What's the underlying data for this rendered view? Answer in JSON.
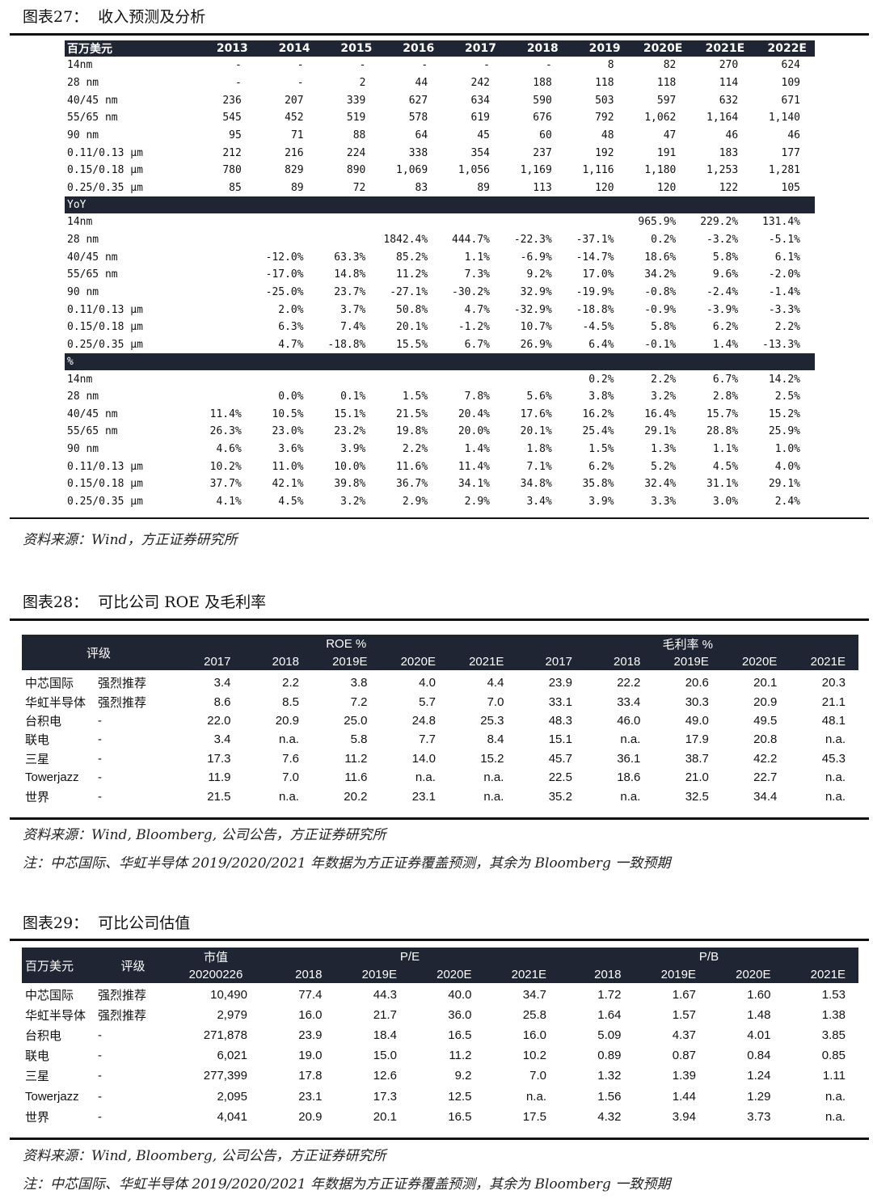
{
  "fig27": {
    "title": "图表27：  收入预测及分析",
    "unit_header": "百万美元",
    "years": [
      "2013",
      "2014",
      "2015",
      "2016",
      "2017",
      "2018",
      "2019",
      "2020E",
      "2021E",
      "2022E"
    ],
    "revenue_rows": [
      {
        "label": "14nm",
        "values": [
          "-",
          "-",
          "-",
          "-",
          "-",
          "-",
          "8",
          "82",
          "270",
          "624"
        ]
      },
      {
        "label": "28 nm",
        "values": [
          "-",
          "-",
          "2",
          "44",
          "242",
          "188",
          "118",
          "118",
          "114",
          "109"
        ]
      },
      {
        "label": "40/45 nm",
        "values": [
          "236",
          "207",
          "339",
          "627",
          "634",
          "590",
          "503",
          "597",
          "632",
          "671"
        ]
      },
      {
        "label": "55/65 nm",
        "values": [
          "545",
          "452",
          "519",
          "578",
          "619",
          "676",
          "792",
          "1,062",
          "1,164",
          "1,140"
        ]
      },
      {
        "label": "90 nm",
        "values": [
          "95",
          "71",
          "88",
          "64",
          "45",
          "60",
          "48",
          "47",
          "46",
          "46"
        ]
      },
      {
        "label": "0.11/0.13 μm",
        "values": [
          "212",
          "216",
          "224",
          "338",
          "354",
          "237",
          "192",
          "191",
          "183",
          "177"
        ]
      },
      {
        "label": "0.15/0.18 μm",
        "values": [
          "780",
          "829",
          "890",
          "1,069",
          "1,056",
          "1,169",
          "1,116",
          "1,180",
          "1,253",
          "1,281"
        ]
      },
      {
        "label": "0.25/0.35 μm",
        "values": [
          "85",
          "89",
          "72",
          "83",
          "89",
          "113",
          "120",
          "120",
          "122",
          "105"
        ]
      }
    ],
    "yoy_header": "YoY",
    "yoy_rows": [
      {
        "label": "14nm",
        "values": [
          "",
          "",
          "",
          "",
          "",
          "",
          "",
          "965.9%",
          "229.2%",
          "131.4%"
        ]
      },
      {
        "label": "28 nm",
        "values": [
          "",
          "",
          "",
          "1842.4%",
          "444.7%",
          "-22.3%",
          "-37.1%",
          "0.2%",
          "-3.2%",
          "-5.1%"
        ]
      },
      {
        "label": "40/45 nm",
        "values": [
          "",
          "-12.0%",
          "63.3%",
          "85.2%",
          "1.1%",
          "-6.9%",
          "-14.7%",
          "18.6%",
          "5.8%",
          "6.1%"
        ]
      },
      {
        "label": "55/65 nm",
        "values": [
          "",
          "-17.0%",
          "14.8%",
          "11.2%",
          "7.3%",
          "9.2%",
          "17.0%",
          "34.2%",
          "9.6%",
          "-2.0%"
        ]
      },
      {
        "label": "90 nm",
        "values": [
          "",
          "-25.0%",
          "23.7%",
          "-27.1%",
          "-30.2%",
          "32.9%",
          "-19.9%",
          "-0.8%",
          "-2.4%",
          "-1.4%"
        ]
      },
      {
        "label": "0.11/0.13 μm",
        "values": [
          "",
          "2.0%",
          "3.7%",
          "50.8%",
          "4.7%",
          "-32.9%",
          "-18.8%",
          "-0.9%",
          "-3.9%",
          "-3.3%"
        ]
      },
      {
        "label": "0.15/0.18 μm",
        "values": [
          "",
          "6.3%",
          "7.4%",
          "20.1%",
          "-1.2%",
          "10.7%",
          "-4.5%",
          "5.8%",
          "6.2%",
          "2.2%"
        ]
      },
      {
        "label": "0.25/0.35 μm",
        "values": [
          "",
          "4.7%",
          "-18.8%",
          "15.5%",
          "6.7%",
          "26.9%",
          "6.4%",
          "-0.1%",
          "1.4%",
          "-13.3%"
        ]
      }
    ],
    "share_header": "%",
    "share_rows": [
      {
        "label": "14nm",
        "values": [
          "",
          "",
          "",
          "",
          "",
          "",
          "0.2%",
          "2.2%",
          "6.7%",
          "14.2%"
        ]
      },
      {
        "label": "28 nm",
        "values": [
          "",
          "0.0%",
          "0.1%",
          "1.5%",
          "7.8%",
          "5.6%",
          "3.8%",
          "3.2%",
          "2.8%",
          "2.5%"
        ]
      },
      {
        "label": "40/45 nm",
        "values": [
          "11.4%",
          "10.5%",
          "15.1%",
          "21.5%",
          "20.4%",
          "17.6%",
          "16.2%",
          "16.4%",
          "15.7%",
          "15.2%"
        ]
      },
      {
        "label": "55/65 nm",
        "values": [
          "26.3%",
          "23.0%",
          "23.2%",
          "19.8%",
          "20.0%",
          "20.1%",
          "25.4%",
          "29.1%",
          "28.8%",
          "25.9%"
        ]
      },
      {
        "label": "90 nm",
        "values": [
          "4.6%",
          "3.6%",
          "3.9%",
          "2.2%",
          "1.4%",
          "1.8%",
          "1.5%",
          "1.3%",
          "1.1%",
          "1.0%"
        ]
      },
      {
        "label": "0.11/0.13 μm",
        "values": [
          "10.2%",
          "11.0%",
          "10.0%",
          "11.6%",
          "11.4%",
          "7.1%",
          "6.2%",
          "5.2%",
          "4.5%",
          "4.0%"
        ]
      },
      {
        "label": "0.15/0.18 μm",
        "values": [
          "37.7%",
          "42.1%",
          "39.8%",
          "36.7%",
          "34.1%",
          "34.8%",
          "35.8%",
          "32.4%",
          "31.1%",
          "29.1%"
        ]
      },
      {
        "label": "0.25/0.35 μm",
        "values": [
          "4.1%",
          "4.5%",
          "3.2%",
          "2.9%",
          "2.9%",
          "3.4%",
          "3.9%",
          "3.3%",
          "3.0%",
          "2.4%"
        ]
      }
    ],
    "source": "资料来源：Wind，方正证券研究所"
  },
  "fig28": {
    "title": "图表28：  可比公司 ROE 及毛利率",
    "rating_header": "评级",
    "roe_header": "ROE %",
    "margin_header": "毛利率 %",
    "years": [
      "2017",
      "2018",
      "2019E",
      "2020E",
      "2021E",
      "2017",
      "2018",
      "2019E",
      "2020E",
      "2021E"
    ],
    "rows": [
      {
        "name": "中芯国际",
        "rating": "强烈推荐",
        "values": [
          "3.4",
          "2.2",
          "3.8",
          "4.0",
          "4.4",
          "23.9",
          "22.2",
          "20.6",
          "20.1",
          "20.3"
        ]
      },
      {
        "name": "华虹半导体",
        "rating": "强烈推荐",
        "values": [
          "8.6",
          "8.5",
          "7.2",
          "5.7",
          "7.0",
          "33.1",
          "33.4",
          "30.3",
          "20.9",
          "21.1"
        ]
      },
      {
        "name": "台积电",
        "rating": "-",
        "values": [
          "22.0",
          "20.9",
          "25.0",
          "24.8",
          "25.3",
          "48.3",
          "46.0",
          "49.0",
          "49.5",
          "48.1"
        ]
      },
      {
        "name": "联电",
        "rating": "-",
        "values": [
          "3.4",
          "n.a.",
          "5.8",
          "7.7",
          "8.4",
          "15.1",
          "n.a.",
          "17.9",
          "20.8",
          "n.a."
        ]
      },
      {
        "name": "三星",
        "rating": "-",
        "values": [
          "17.3",
          "7.6",
          "11.2",
          "14.0",
          "15.2",
          "45.7",
          "36.1",
          "38.7",
          "42.2",
          "45.3"
        ]
      },
      {
        "name": "Towerjazz",
        "rating": "-",
        "values": [
          "11.9",
          "7.0",
          "11.6",
          "n.a.",
          "n.a.",
          "22.5",
          "18.6",
          "21.0",
          "22.7",
          "n.a."
        ]
      },
      {
        "name": "世界",
        "rating": "-",
        "values": [
          "21.5",
          "n.a.",
          "20.2",
          "23.1",
          "n.a.",
          "35.2",
          "n.a.",
          "32.5",
          "34.4",
          "n.a."
        ]
      }
    ],
    "source": "资料来源：Wind, Bloomberg, 公司公告，方正证券研究所",
    "note": "注：中芯国际、华虹半导体 2019/2020/2021 年数据为方正证券覆盖预测，其余为 Bloomberg 一致预期"
  },
  "fig29": {
    "title": "图表29：  可比公司估值",
    "unit_header": "百万美元",
    "rating_header": "评级",
    "mktcap_header": "市值",
    "mktcap_date": "20200226",
    "pe_header": "P/E",
    "pb_header": "P/B",
    "years": [
      "2018",
      "2019E",
      "2020E",
      "2021E",
      "2018",
      "2019E",
      "2020E",
      "2021E"
    ],
    "rows": [
      {
        "name": "中芯国际",
        "rating": "强烈推荐",
        "mktcap": "10,490",
        "values": [
          "77.4",
          "44.3",
          "40.0",
          "34.7",
          "1.72",
          "1.67",
          "1.60",
          "1.53"
        ]
      },
      {
        "name": "华虹半导体",
        "rating": "强烈推荐",
        "mktcap": "2,979",
        "values": [
          "16.0",
          "21.7",
          "36.0",
          "25.8",
          "1.64",
          "1.57",
          "1.48",
          "1.38"
        ]
      },
      {
        "name": "台积电",
        "rating": "-",
        "mktcap": "271,878",
        "values": [
          "23.9",
          "18.4",
          "16.5",
          "16.0",
          "5.09",
          "4.37",
          "4.01",
          "3.85"
        ]
      },
      {
        "name": "联电",
        "rating": "-",
        "mktcap": "6,021",
        "values": [
          "19.0",
          "15.0",
          "11.2",
          "10.2",
          "0.89",
          "0.87",
          "0.84",
          "0.85"
        ]
      },
      {
        "name": "三星",
        "rating": "-",
        "mktcap": "277,399",
        "values": [
          "17.8",
          "12.6",
          "9.2",
          "7.0",
          "1.32",
          "1.39",
          "1.24",
          "1.11"
        ]
      },
      {
        "name": "Towerjazz",
        "rating": "-",
        "mktcap": "2,095",
        "values": [
          "23.1",
          "17.3",
          "12.5",
          "n.a.",
          "1.56",
          "1.44",
          "1.29",
          "n.a."
        ]
      },
      {
        "name": "世界",
        "rating": "-",
        "mktcap": "4,041",
        "values": [
          "20.9",
          "20.1",
          "16.5",
          "17.5",
          "4.32",
          "3.94",
          "3.73",
          "n.a."
        ]
      }
    ],
    "source": "资料来源：Wind, Bloomberg, 公司公告，方正证券研究所",
    "note": "注：中芯国际、华虹半导体 2019/2020/2021 年数据为方正证券覆盖预测，其余为 Bloomberg 一致预期"
  }
}
